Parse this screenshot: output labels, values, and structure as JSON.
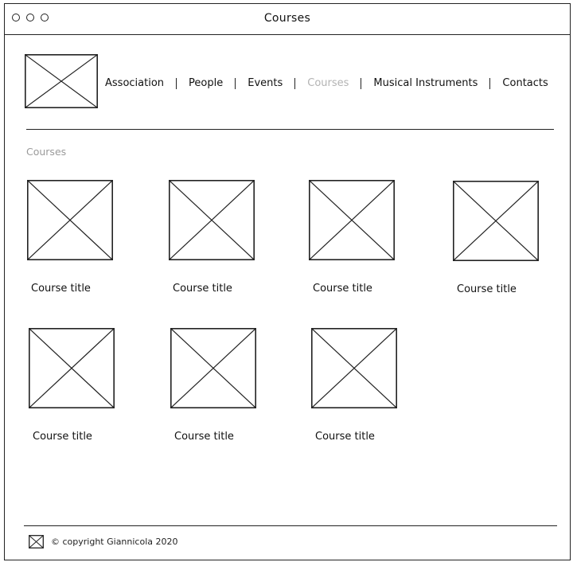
{
  "window": {
    "title": "Courses"
  },
  "nav": {
    "items": [
      {
        "label": "Association"
      },
      {
        "label": "People"
      },
      {
        "label": "Events"
      },
      {
        "label": "Courses",
        "active": true
      },
      {
        "label": "Musical Instruments"
      },
      {
        "label": "Contacts"
      }
    ]
  },
  "section": {
    "title": "Courses"
  },
  "courses": [
    {
      "title": "Course title"
    },
    {
      "title": "Course title"
    },
    {
      "title": "Course title"
    },
    {
      "title": "Course title"
    },
    {
      "title": "Course title"
    },
    {
      "title": "Course title"
    },
    {
      "title": "Course title"
    }
  ],
  "footer": {
    "copyright": "© copyright Giannicola 2020"
  },
  "colors": {
    "active_nav": "#b3b3b3",
    "section_title": "#9a9a9a"
  }
}
